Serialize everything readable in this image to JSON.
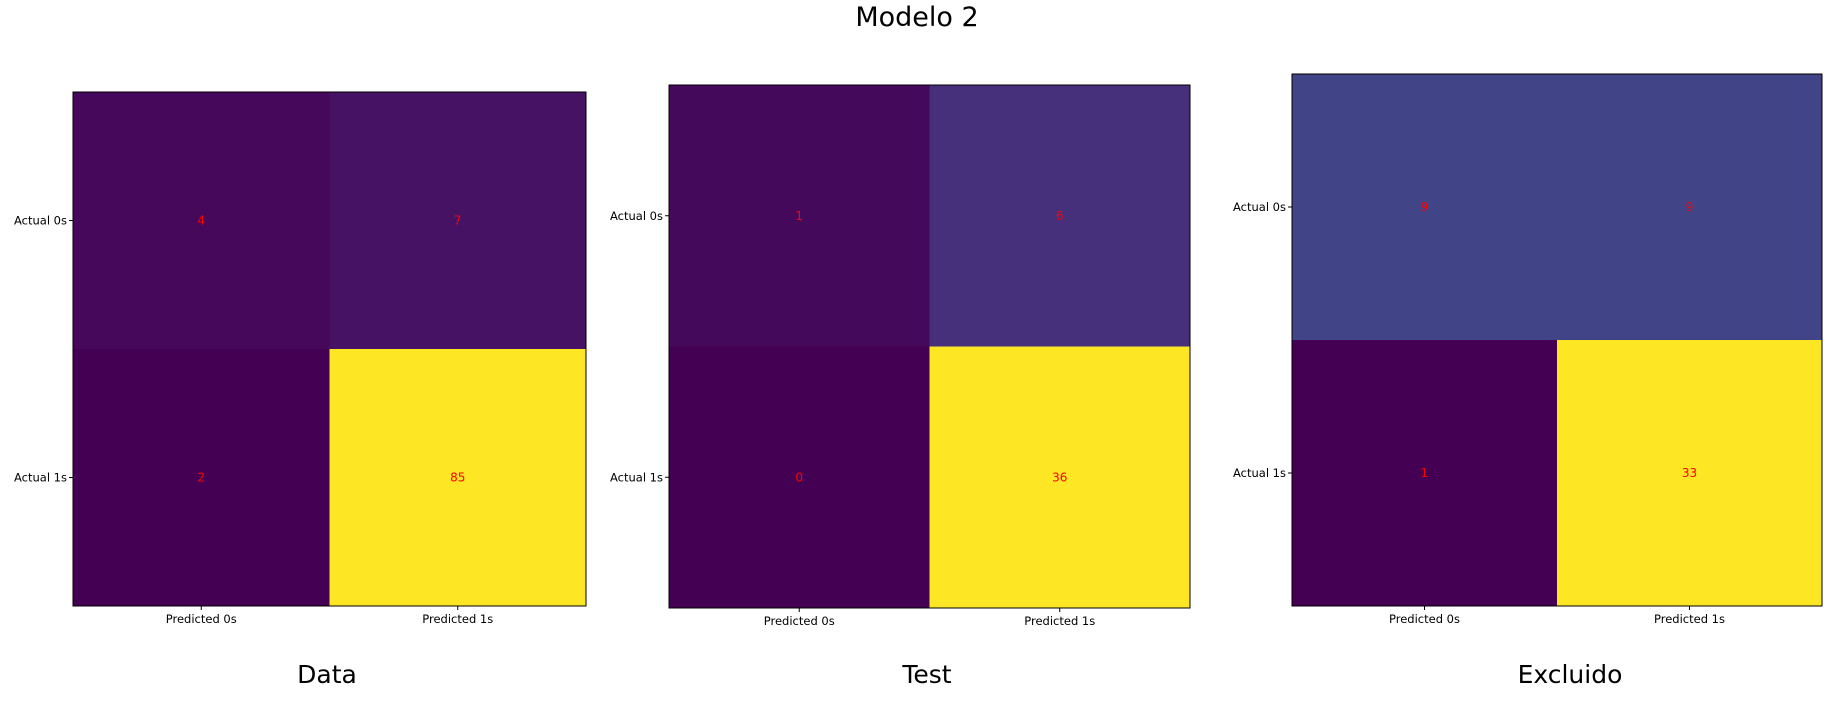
{
  "figure": {
    "title": "Modelo 2"
  },
  "chart_data": [
    {
      "type": "heatmap",
      "caption": "Data",
      "row_labels": [
        "Actual 0s",
        "Actual 1s"
      ],
      "col_labels": [
        "Predicted 0s",
        "Predicted 1s"
      ],
      "values": [
        [
          4,
          7
        ],
        [
          2,
          85
        ]
      ],
      "colormap": "viridis",
      "cell_text_color": "#ff0000"
    },
    {
      "type": "heatmap",
      "caption": "Test",
      "row_labels": [
        "Actual 0s",
        "Actual 1s"
      ],
      "col_labels": [
        "Predicted 0s",
        "Predicted 1s"
      ],
      "values": [
        [
          1,
          6
        ],
        [
          0,
          36
        ]
      ],
      "colormap": "viridis",
      "cell_text_color": "#ff0000"
    },
    {
      "type": "heatmap",
      "caption": "Excluido",
      "row_labels": [
        "Actual 0s",
        "Actual 1s"
      ],
      "col_labels": [
        "Predicted 0s",
        "Predicted 1s"
      ],
      "values": [
        [
          9,
          9
        ],
        [
          1,
          33
        ]
      ],
      "colormap": "viridis",
      "cell_text_color": "#ff0000"
    }
  ]
}
